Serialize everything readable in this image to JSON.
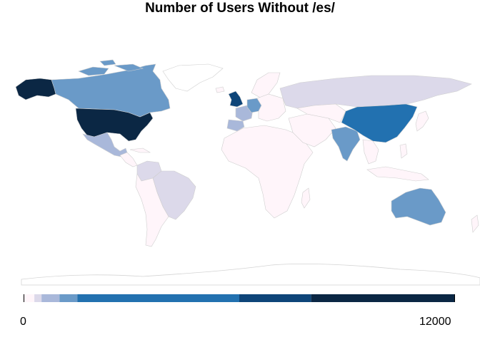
{
  "title": "Number of Users Without /es/",
  "legend": {
    "min_label": "0",
    "max_label": "12000",
    "range": [
      0,
      12000
    ],
    "bins": [
      {
        "to": 300,
        "color": "#fff5fa"
      },
      {
        "to": 500,
        "color": "#dcd9ea"
      },
      {
        "to": 1000,
        "color": "#a9b8da"
      },
      {
        "to": 1500,
        "color": "#6a9ac8"
      },
      {
        "to": 6000,
        "color": "#2271b0"
      },
      {
        "to": 8000,
        "color": "#0e4579"
      },
      {
        "to": 12000,
        "color": "#0b2744"
      }
    ]
  },
  "colors": {
    "no_data": "#ffffff",
    "very_low": "#fff5fa",
    "low": "#dcd9ea",
    "mid_low": "#a9b8da",
    "mid": "#6a9ac8",
    "high": "#2271b0",
    "very_high": "#0e4579",
    "max": "#0b2744",
    "border": "#cfcfcf"
  },
  "countries": [
    {
      "name": "United States",
      "color_key": "max"
    },
    {
      "name": "Alaska (US)",
      "color_key": "max"
    },
    {
      "name": "Canada",
      "color_key": "mid"
    },
    {
      "name": "Greenland",
      "color_key": "no_data"
    },
    {
      "name": "Mexico",
      "color_key": "mid_low"
    },
    {
      "name": "United Kingdom",
      "color_key": "very_high"
    },
    {
      "name": "Germany",
      "color_key": "mid"
    },
    {
      "name": "France",
      "color_key": "mid_low"
    },
    {
      "name": "Spain",
      "color_key": "mid_low"
    },
    {
      "name": "Russia",
      "color_key": "low"
    },
    {
      "name": "China",
      "color_key": "high"
    },
    {
      "name": "India",
      "color_key": "mid"
    },
    {
      "name": "Australia",
      "color_key": "mid"
    },
    {
      "name": "Brazil",
      "color_key": "low"
    },
    {
      "name": "Colombia",
      "color_key": "low"
    },
    {
      "name": "Japan",
      "color_key": "very_low"
    },
    {
      "name": "Other countries",
      "color_key": "very_low"
    }
  ]
}
